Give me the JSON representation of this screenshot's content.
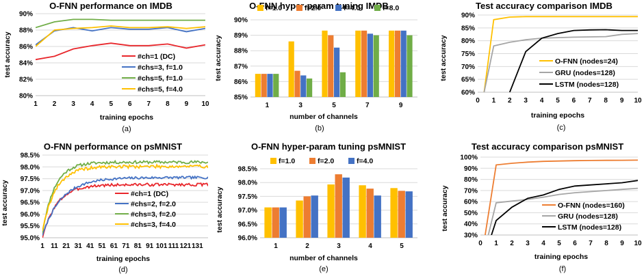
{
  "colors": {
    "red": "#e8262b",
    "blue": "#4472c4",
    "green": "#70ad47",
    "yellow": "#ffc000",
    "orange": "#ed7d31",
    "gray": "#a5a5a5",
    "black": "#000000"
  },
  "chart_data": [
    {
      "id": "a",
      "type": "line",
      "caption": "(a)",
      "title": "O-FNN performance on IMDB",
      "xlabel": "training epochs",
      "ylabel": "test accuracy",
      "xlim": [
        1,
        10
      ],
      "ylim": [
        80,
        90
      ],
      "yticks": [
        80,
        82,
        84,
        86,
        88,
        90
      ],
      "ytick_labels": [
        "80%",
        "82%",
        "84%",
        "86%",
        "88%",
        "90%"
      ],
      "xticks": [
        1,
        2,
        3,
        4,
        5,
        6,
        7,
        8,
        9,
        10
      ],
      "xtick_labels": [
        "1",
        "2",
        "3",
        "4",
        "5",
        "6",
        "7",
        "8",
        "9",
        "10"
      ],
      "legend_position": "bottom-right",
      "grid": true,
      "x": [
        1,
        2,
        3,
        4,
        5,
        6,
        7,
        8,
        9,
        10
      ],
      "series": [
        {
          "name": "#ch=1 (DC)",
          "color": "red",
          "values": [
            84.4,
            84.8,
            85.7,
            86.1,
            86.4,
            86.1,
            86.1,
            86.3,
            85.8,
            86.2
          ]
        },
        {
          "name": "#chs=3, f=1.0",
          "color": "blue",
          "values": [
            86.2,
            87.9,
            88.3,
            87.9,
            88.3,
            88.1,
            88.1,
            88.3,
            87.8,
            88.2
          ]
        },
        {
          "name": "#chs=5, f=1.0",
          "color": "green",
          "values": [
            88.3,
            89.0,
            89.3,
            89.3,
            89.2,
            89.2,
            89.2,
            89.2,
            89.2,
            89.2
          ]
        },
        {
          "name": "#chs=5, f=4.0",
          "color": "yellow",
          "values": [
            86.0,
            88.0,
            88.2,
            88.3,
            88.5,
            88.3,
            88.3,
            88.4,
            88.2,
            88.4
          ]
        }
      ]
    },
    {
      "id": "b",
      "type": "bar",
      "caption": "(b)",
      "title": "O-FNN hyper-param tuning IMDB",
      "xlabel": "number of channels",
      "ylabel": "test accuracy",
      "ylim": [
        85,
        90
      ],
      "yticks": [
        85,
        86,
        87,
        88,
        89,
        90
      ],
      "ytick_labels": [
        "85%",
        "86%",
        "87%",
        "88%",
        "89%",
        "90%"
      ],
      "categories": [
        "1",
        "3",
        "5",
        "7",
        "9"
      ],
      "legend_position": "top",
      "grid": true,
      "series": [
        {
          "name": "f=1.0",
          "color": "yellow",
          "values": [
            86.5,
            88.6,
            89.3,
            89.3,
            89.3
          ]
        },
        {
          "name": "f=2.0",
          "color": "orange",
          "values": [
            86.5,
            86.7,
            89.0,
            89.3,
            89.3
          ]
        },
        {
          "name": "f=4.0",
          "color": "blue",
          "values": [
            86.5,
            86.4,
            88.2,
            89.1,
            89.3
          ]
        },
        {
          "name": "f=8.0",
          "color": "green",
          "values": [
            86.5,
            86.2,
            86.6,
            89.0,
            89.0
          ]
        }
      ]
    },
    {
      "id": "c",
      "type": "line",
      "caption": "(c)",
      "title": "Test accuracy comparison IMDB",
      "xlabel": "training epochs",
      "ylabel": "test accuracy",
      "xlim": [
        0,
        10
      ],
      "ylim": [
        60,
        90
      ],
      "yticks": [
        60,
        65,
        70,
        75,
        80,
        85,
        90
      ],
      "ytick_labels": [
        "60%",
        "65%",
        "70%",
        "75%",
        "80%",
        "85%",
        "90%"
      ],
      "xticks": [
        0,
        1,
        2,
        3,
        4,
        5,
        6,
        7,
        8,
        9,
        10
      ],
      "xtick_labels": [
        "0",
        "1",
        "2",
        "3",
        "4",
        "5",
        "6",
        "7",
        "8",
        "9",
        "10"
      ],
      "legend_position": "bottom-right",
      "grid": true,
      "series": [
        {
          "name": "O-FNN (nodes=24)",
          "color": "yellow",
          "x": [
            0.4,
            1,
            2,
            3,
            4,
            5,
            6,
            7,
            8,
            9,
            10
          ],
          "values": [
            60,
            88.2,
            89.2,
            89.4,
            89.4,
            89.4,
            89.4,
            89.4,
            89.4,
            89.4,
            89.4
          ]
        },
        {
          "name": "GRU (nodes=128)",
          "color": "gray",
          "x": [
            0.4,
            1,
            2,
            3,
            4,
            5,
            6,
            7,
            8,
            9,
            10
          ],
          "values": [
            60,
            78.0,
            79.4,
            80.4,
            81.0,
            81.2,
            81.4,
            81.5,
            81.6,
            82.5,
            82.8
          ]
        },
        {
          "name": "LSTM (nodes=128)",
          "color": "black",
          "x": [
            2,
            3,
            4,
            5,
            6,
            7,
            8,
            9,
            10
          ],
          "values": [
            60,
            75.8,
            81.0,
            82.8,
            84.0,
            84.2,
            84.3,
            84.0,
            84.0
          ]
        }
      ]
    },
    {
      "id": "d",
      "type": "line",
      "caption": "(d)",
      "title": "O-FNN performance on psMNIST",
      "xlabel": "training epochs",
      "ylabel": "test accuracy",
      "xlim": [
        1,
        140
      ],
      "ylim": [
        95,
        98.5
      ],
      "yticks": [
        95.0,
        95.5,
        96.0,
        96.5,
        97.0,
        97.5,
        98.0,
        98.5
      ],
      "ytick_labels": [
        "95.0%",
        "95.5%",
        "96.0%",
        "96.5%",
        "97.0%",
        "97.5%",
        "98.0%",
        "98.5%"
      ],
      "xticks": [
        1,
        11,
        21,
        31,
        41,
        51,
        61,
        71,
        81,
        91,
        101,
        111,
        121,
        131
      ],
      "xtick_labels": [
        "1",
        "11",
        "21",
        "31",
        "41",
        "51",
        "61",
        "71",
        "81",
        "91",
        "101",
        "111",
        "121",
        "131"
      ],
      "legend_position": "bottom-right",
      "grid": true,
      "series": [
        {
          "name": "#ch=1 (DC)",
          "color": "red",
          "start": 95.0,
          "plateau": 97.25,
          "rate": 12,
          "noise": 0.06,
          "seed": 3
        },
        {
          "name": "#chs=2, f=2.0",
          "color": "blue",
          "start": 95.1,
          "plateau": 97.55,
          "rate": 16,
          "noise": 0.05,
          "seed": 7
        },
        {
          "name": "#chs=3, f=2.0",
          "color": "green",
          "start": 95.2,
          "plateau": 98.2,
          "rate": 10,
          "noise": 0.06,
          "seed": 11
        },
        {
          "name": "#chs=3, f=4.0",
          "color": "yellow",
          "start": 95.3,
          "plateau": 98.02,
          "rate": 11,
          "noise": 0.07,
          "seed": 19
        }
      ]
    },
    {
      "id": "e",
      "type": "bar",
      "caption": "(e)",
      "title": "O-FNN hyper-param tuning psMNIST",
      "xlabel": "number of channels",
      "ylabel": "test accuracy",
      "ylim": [
        96.0,
        98.5
      ],
      "yticks": [
        96.0,
        96.5,
        97.0,
        97.5,
        98.0,
        98.5
      ],
      "ytick_labels": [
        "96.0%",
        "96.5%",
        "97.0%",
        "97.5%",
        "98.0%",
        "98.5%"
      ],
      "categories": [
        "1",
        "2",
        "3",
        "4",
        "5"
      ],
      "legend_position": "top",
      "grid": true,
      "series": [
        {
          "name": "f=1.0",
          "color": "yellow",
          "values": [
            97.1,
            97.35,
            97.93,
            97.9,
            97.8
          ]
        },
        {
          "name": "f=2.0",
          "color": "orange",
          "values": [
            97.1,
            97.5,
            98.3,
            97.78,
            97.7
          ]
        },
        {
          "name": "f=4.0",
          "color": "blue",
          "values": [
            97.1,
            97.53,
            98.18,
            97.53,
            97.68
          ]
        }
      ]
    },
    {
      "id": "f",
      "type": "line",
      "caption": "(f)",
      "title": "Test accuracy comparison psMNIST",
      "xlabel": "training epochs",
      "ylabel": "test accuracy",
      "xlim": [
        0,
        10
      ],
      "ylim": [
        30,
        100
      ],
      "yticks": [
        30,
        40,
        50,
        60,
        70,
        80,
        90,
        100
      ],
      "ytick_labels": [
        "30%",
        "40%",
        "50%",
        "60%",
        "70%",
        "80%",
        "90%",
        "100%"
      ],
      "xticks": [
        0,
        1,
        2,
        3,
        4,
        5,
        6,
        7,
        8,
        9,
        10
      ],
      "xtick_labels": [
        "0",
        "1",
        "2",
        "3",
        "4",
        "5",
        "6",
        "7",
        "8",
        "9",
        "10"
      ],
      "legend_position": "bottom-right",
      "grid": true,
      "series": [
        {
          "name": "O-FNN (nodes=160)",
          "color": "orange",
          "x": [
            0.3,
            1,
            2,
            3,
            4,
            5,
            6,
            7,
            8,
            9,
            10
          ],
          "values": [
            30,
            93,
            94.5,
            95.5,
            96.2,
            96.5,
            96.8,
            97,
            97.1,
            97.2,
            97.3
          ]
        },
        {
          "name": "GRU (nodes=128)",
          "color": "gray",
          "x": [
            0.5,
            1,
            2,
            3,
            4,
            5,
            6,
            7,
            8,
            9,
            10
          ],
          "values": [
            30,
            59,
            60.5,
            62,
            64,
            66.5,
            68,
            69,
            70,
            71,
            72
          ]
        },
        {
          "name": "LSTM (nodes=128)",
          "color": "black",
          "x": [
            0.7,
            1,
            2,
            3,
            4,
            5,
            6,
            7,
            8,
            9,
            10
          ],
          "values": [
            30,
            43,
            55,
            63,
            66,
            71,
            74,
            75,
            76,
            77,
            79
          ]
        }
      ]
    }
  ]
}
